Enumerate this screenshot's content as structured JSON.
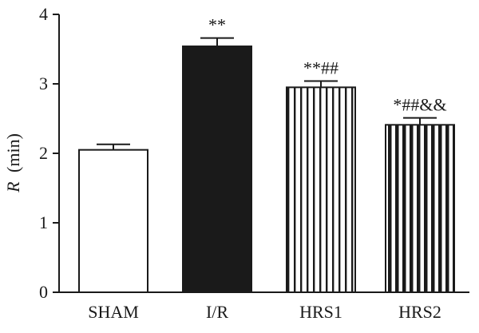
{
  "chart_data": {
    "type": "bar",
    "ylabel_var": "R",
    "ylabel_unit": "(min)",
    "xlabel": "",
    "ylim": [
      0,
      4
    ],
    "yticks": [
      "0",
      "1",
      "2",
      "3",
      "4"
    ],
    "categories": [
      "SHAM",
      "I/R",
      "HRS1",
      "HRS2"
    ],
    "values": [
      2.05,
      3.54,
      2.95,
      2.41
    ],
    "errors": [
      0.08,
      0.12,
      0.09,
      0.1
    ],
    "annotations": [
      "",
      "**",
      "**##",
      "*##&&"
    ],
    "fills": [
      "white",
      "black",
      "vertical-thin-stripes",
      "vertical-thick-stripes"
    ],
    "grid": false,
    "colors": {
      "ink": "#1a1a1a",
      "background": "#ffffff"
    }
  }
}
